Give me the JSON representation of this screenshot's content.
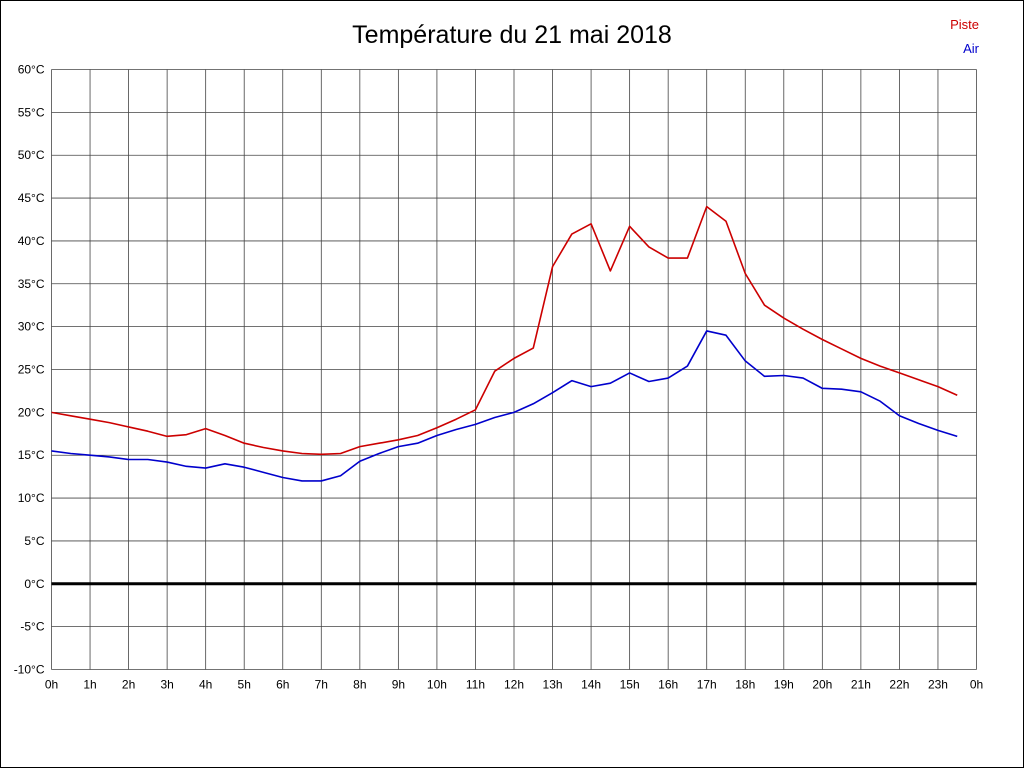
{
  "title": "Température du 21 mai 2018",
  "legend": {
    "piste_label": "Piste",
    "air_label": "Air"
  },
  "colors": {
    "piste": "#cc0000",
    "air": "#0000cc",
    "grid": "#444444",
    "zero_line": "#000000"
  },
  "chart_data": {
    "type": "line",
    "title": "Température du 21 mai 2018",
    "xlabel": "",
    "ylabel": "",
    "xlim": [
      0,
      24
    ],
    "ylim": [
      -10,
      60
    ],
    "grid": true,
    "legend_position": "top-right",
    "y_ticks": [
      60,
      55,
      50,
      45,
      40,
      35,
      30,
      25,
      20,
      15,
      10,
      5,
      0,
      -5,
      -10
    ],
    "y_tick_labels": [
      "60°C",
      "55°C",
      "50°C",
      "45°C",
      "40°C",
      "35°C",
      "30°C",
      "25°C",
      "20°C",
      "15°C",
      "10°C",
      "5°C",
      "0°C",
      "-5°C",
      "-10°C"
    ],
    "x_ticks": [
      0,
      1,
      2,
      3,
      4,
      5,
      6,
      7,
      8,
      9,
      10,
      11,
      12,
      13,
      14,
      15,
      16,
      17,
      18,
      19,
      20,
      21,
      22,
      23,
      24
    ],
    "x_tick_labels": [
      "0h",
      "1h",
      "2h",
      "3h",
      "4h",
      "5h",
      "6h",
      "7h",
      "8h",
      "9h",
      "10h",
      "11h",
      "12h",
      "13h",
      "14h",
      "15h",
      "16h",
      "17h",
      "18h",
      "19h",
      "20h",
      "21h",
      "22h",
      "23h",
      "0h"
    ],
    "zero_line": {
      "value": 0,
      "width": 3
    },
    "series": [
      {
        "name": "Piste",
        "color": "#cc0000",
        "x": [
          0,
          0.5,
          1,
          1.5,
          2,
          2.5,
          3,
          3.5,
          4,
          4.5,
          5,
          5.5,
          6,
          6.5,
          7,
          7.5,
          8,
          8.5,
          9,
          9.5,
          10,
          10.5,
          11,
          11.5,
          12,
          12.5,
          13,
          13.5,
          14,
          14.5,
          15,
          15.5,
          16,
          16.5,
          17,
          17.5,
          18,
          18.5,
          19,
          19.5,
          20,
          20.5,
          21,
          21.5,
          22,
          22.5,
          23,
          23.5
        ],
        "values": [
          20.0,
          19.6,
          19.2,
          18.8,
          18.3,
          17.8,
          17.2,
          17.4,
          18.1,
          17.3,
          16.4,
          15.9,
          15.5,
          15.2,
          15.1,
          15.2,
          16.0,
          16.4,
          16.8,
          17.3,
          18.2,
          19.2,
          20.3,
          24.8,
          26.3,
          27.5,
          37.0,
          40.8,
          42.0,
          36.5,
          41.7,
          39.3,
          38.0,
          38.0,
          44.0,
          42.3,
          36.2,
          32.5,
          31.0,
          29.7,
          28.5,
          27.4,
          26.3,
          25.4,
          24.6,
          23.8,
          23.0,
          22.0
        ]
      },
      {
        "name": "Air",
        "color": "#0000cc",
        "x": [
          0,
          0.5,
          1,
          1.5,
          2,
          2.5,
          3,
          3.5,
          4,
          4.5,
          5,
          5.5,
          6,
          6.5,
          7,
          7.5,
          8,
          8.5,
          9,
          9.5,
          10,
          10.5,
          11,
          11.5,
          12,
          12.5,
          13,
          13.5,
          14,
          14.5,
          15,
          15.5,
          16,
          16.5,
          17,
          17.5,
          18,
          18.5,
          19,
          19.5,
          20,
          20.5,
          21,
          21.5,
          22,
          22.5,
          23,
          23.5
        ],
        "values": [
          15.5,
          15.2,
          15.0,
          14.8,
          14.5,
          14.5,
          14.2,
          13.7,
          13.5,
          14.0,
          13.6,
          13.0,
          12.4,
          12.0,
          12.0,
          12.6,
          14.3,
          15.2,
          16.0,
          16.4,
          17.3,
          18.0,
          18.6,
          19.4,
          20.0,
          21.0,
          22.3,
          23.7,
          23.0,
          23.4,
          24.6,
          23.6,
          24.0,
          25.4,
          29.5,
          29.0,
          26.0,
          24.2,
          24.3,
          24.0,
          22.8,
          22.7,
          22.4,
          21.3,
          19.6,
          18.7,
          17.9,
          17.2
        ]
      }
    ]
  }
}
